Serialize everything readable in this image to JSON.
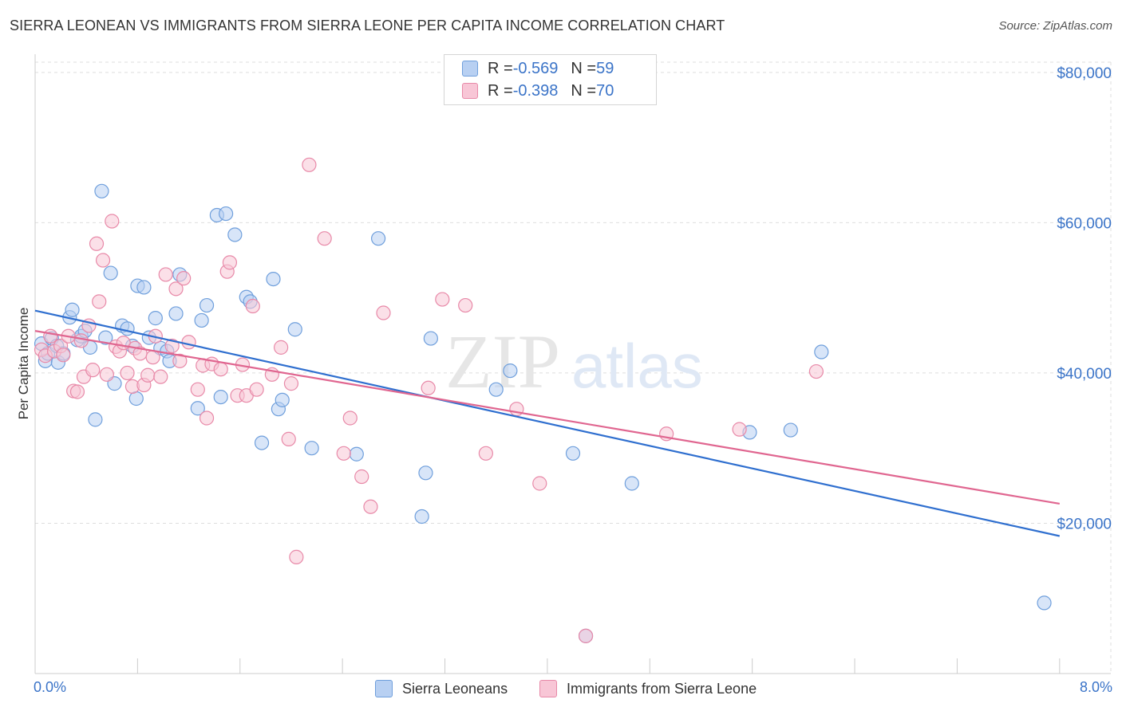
{
  "title": "SIERRA LEONEAN VS IMMIGRANTS FROM SIERRA LEONE PER CAPITA INCOME CORRELATION CHART",
  "source": "Source: ZipAtlas.com",
  "watermark": {
    "zip": "ZIP",
    "atlas": "atlas"
  },
  "legend": {
    "series1": {
      "r_label": "R = ",
      "r_value": "-0.569",
      "n_label": "N = ",
      "n_value": "59"
    },
    "series2": {
      "r_label": "R = ",
      "r_value": "-0.398",
      "n_label": "N = ",
      "n_value": "70"
    }
  },
  "colors": {
    "blue_fill": "#b8d0f2",
    "blue_stroke": "#6f9fdc",
    "blue_line": "#2f6fcf",
    "pink_fill": "#f8c6d6",
    "pink_stroke": "#e889a8",
    "pink_line": "#e06690",
    "axis_text": "#3b74c8",
    "grid": "#dddddd"
  },
  "chart_data": {
    "type": "scatter",
    "title": "SIERRA LEONEAN VS IMMIGRANTS FROM SIERRA LEONE PER CAPITA INCOME CORRELATION CHART",
    "xlabel": "",
    "ylabel": "Per Capita Income",
    "xlim": [
      0,
      8.4
    ],
    "ylim": [
      0,
      82000
    ],
    "x_tick_labels": [
      "0.0%",
      "8.0%"
    ],
    "y_ticks": [
      20000,
      40000,
      60000,
      80000
    ],
    "y_tick_labels": [
      "$20,000",
      "$40,000",
      "$60,000",
      "$80,000"
    ],
    "grid": true,
    "legend_position": "top-center",
    "series": [
      {
        "name": "Sierra Leoneans",
        "color": "#6f9fdc",
        "trend": [
          [
            0.0,
            48300
          ],
          [
            8.0,
            18300
          ]
        ],
        "points": [
          [
            0.05,
            43900
          ],
          [
            0.08,
            41600
          ],
          [
            0.1,
            42600
          ],
          [
            0.13,
            44600
          ],
          [
            0.17,
            43600
          ],
          [
            0.18,
            41400
          ],
          [
            0.22,
            42600
          ],
          [
            0.27,
            47400
          ],
          [
            0.29,
            48400
          ],
          [
            0.33,
            44400
          ],
          [
            0.36,
            44900
          ],
          [
            0.39,
            45600
          ],
          [
            0.43,
            43400
          ],
          [
            0.47,
            33800
          ],
          [
            0.52,
            64200
          ],
          [
            0.55,
            44700
          ],
          [
            0.59,
            53300
          ],
          [
            0.62,
            38600
          ],
          [
            0.68,
            46300
          ],
          [
            0.72,
            45900
          ],
          [
            0.76,
            43600
          ],
          [
            0.79,
            36600
          ],
          [
            0.8,
            51600
          ],
          [
            0.85,
            51400
          ],
          [
            0.89,
            44700
          ],
          [
            0.94,
            47300
          ],
          [
            0.98,
            43300
          ],
          [
            1.03,
            42900
          ],
          [
            1.05,
            41600
          ],
          [
            1.1,
            47900
          ],
          [
            1.13,
            53100
          ],
          [
            1.27,
            35300
          ],
          [
            1.3,
            47000
          ],
          [
            1.34,
            49000
          ],
          [
            1.42,
            61000
          ],
          [
            1.45,
            36800
          ],
          [
            1.49,
            61200
          ],
          [
            1.56,
            58400
          ],
          [
            1.65,
            50100
          ],
          [
            1.68,
            49500
          ],
          [
            1.77,
            30700
          ],
          [
            1.86,
            52500
          ],
          [
            1.9,
            35200
          ],
          [
            1.93,
            36400
          ],
          [
            2.03,
            45800
          ],
          [
            2.16,
            30000
          ],
          [
            2.51,
            29200
          ],
          [
            2.68,
            57900
          ],
          [
            3.02,
            20900
          ],
          [
            3.05,
            26700
          ],
          [
            3.09,
            44600
          ],
          [
            3.6,
            37800
          ],
          [
            3.71,
            40300
          ],
          [
            4.2,
            29300
          ],
          [
            4.3,
            5000
          ],
          [
            4.66,
            25300
          ],
          [
            5.58,
            32100
          ],
          [
            5.9,
            32400
          ],
          [
            6.14,
            42800
          ],
          [
            7.88,
            9400
          ]
        ]
      },
      {
        "name": "Immigrants from Sierra Leone",
        "color": "#e889a8",
        "trend": [
          [
            0.0,
            45600
          ],
          [
            8.0,
            22600
          ]
        ],
        "points": [
          [
            0.05,
            43100
          ],
          [
            0.08,
            42300
          ],
          [
            0.12,
            44900
          ],
          [
            0.15,
            42900
          ],
          [
            0.2,
            43600
          ],
          [
            0.22,
            42400
          ],
          [
            0.26,
            44900
          ],
          [
            0.3,
            37600
          ],
          [
            0.33,
            37500
          ],
          [
            0.36,
            44300
          ],
          [
            0.38,
            39500
          ],
          [
            0.42,
            46300
          ],
          [
            0.45,
            40400
          ],
          [
            0.48,
            57200
          ],
          [
            0.5,
            49500
          ],
          [
            0.53,
            55000
          ],
          [
            0.56,
            39800
          ],
          [
            0.6,
            60200
          ],
          [
            0.63,
            43500
          ],
          [
            0.66,
            42900
          ],
          [
            0.69,
            44000
          ],
          [
            0.72,
            40000
          ],
          [
            0.76,
            38200
          ],
          [
            0.78,
            43300
          ],
          [
            0.82,
            42600
          ],
          [
            0.85,
            38400
          ],
          [
            0.88,
            39700
          ],
          [
            0.92,
            42100
          ],
          [
            0.94,
            44900
          ],
          [
            0.98,
            39500
          ],
          [
            1.02,
            53100
          ],
          [
            1.07,
            43600
          ],
          [
            1.1,
            51200
          ],
          [
            1.13,
            41600
          ],
          [
            1.16,
            52600
          ],
          [
            1.2,
            44100
          ],
          [
            1.27,
            37800
          ],
          [
            1.31,
            41000
          ],
          [
            1.34,
            34000
          ],
          [
            1.38,
            41200
          ],
          [
            1.45,
            40500
          ],
          [
            1.5,
            53500
          ],
          [
            1.52,
            54700
          ],
          [
            1.58,
            37000
          ],
          [
            1.62,
            41100
          ],
          [
            1.65,
            37000
          ],
          [
            1.7,
            48900
          ],
          [
            1.73,
            37800
          ],
          [
            1.85,
            39800
          ],
          [
            1.92,
            43400
          ],
          [
            1.98,
            31200
          ],
          [
            2.0,
            38600
          ],
          [
            2.04,
            15500
          ],
          [
            2.14,
            67700
          ],
          [
            2.26,
            57900
          ],
          [
            2.41,
            29300
          ],
          [
            2.46,
            34000
          ],
          [
            2.55,
            26200
          ],
          [
            2.62,
            22200
          ],
          [
            2.72,
            48000
          ],
          [
            3.07,
            38000
          ],
          [
            3.18,
            49800
          ],
          [
            3.36,
            49000
          ],
          [
            3.52,
            29300
          ],
          [
            3.76,
            35200
          ],
          [
            3.94,
            25300
          ],
          [
            4.93,
            31900
          ],
          [
            5.5,
            32500
          ],
          [
            6.1,
            40200
          ],
          [
            4.3,
            5000
          ]
        ]
      }
    ]
  },
  "bottom_legend": {
    "series1": "Sierra Leoneans",
    "series2": "Immigrants from Sierra Leone"
  }
}
